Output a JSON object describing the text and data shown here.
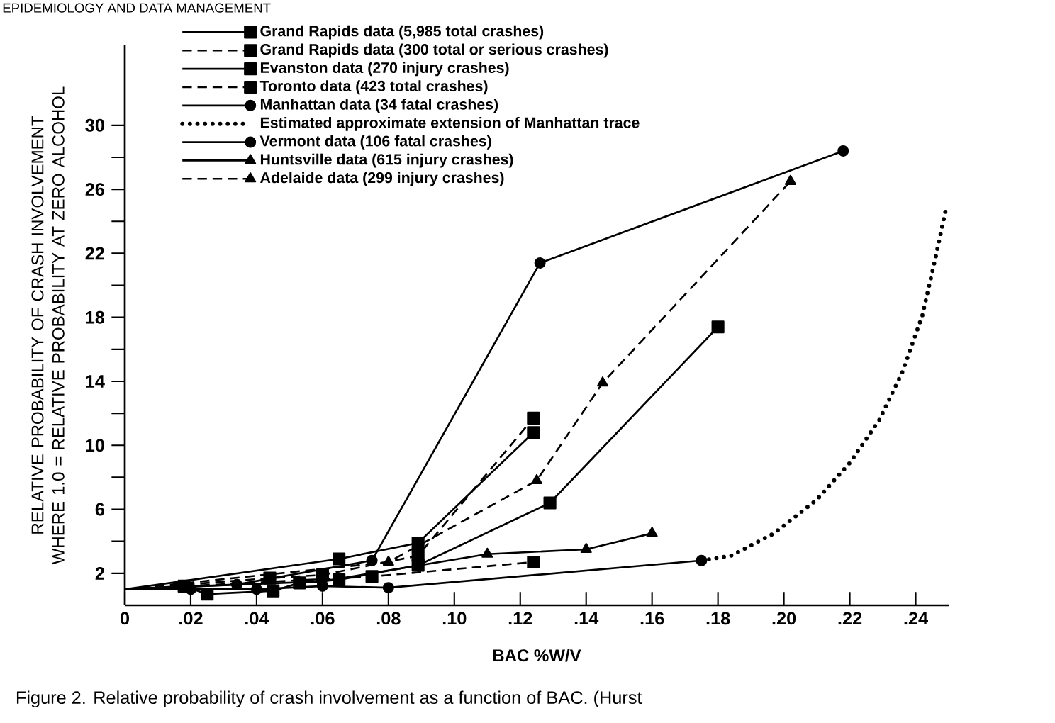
{
  "chart_data": {
    "type": "line",
    "xlabel": "BAC %W/V",
    "ylabel": "RELATIVE PROBABILITY OF CRASH INVOLVEMENT WHERE 1.0 = RELATIVE PROBABILITY AT ZERO ALCOHOL",
    "annotations": [
      "EPIDEMIOLOGY AND DATA MANAGEMENT",
      "Figure 2.    Relative probability of crash involvement as a function of BAC. (Hurst"
    ],
    "xlim": [
      0,
      0.25
    ],
    "ylim": [
      0,
      35
    ],
    "xticks": [
      0,
      {
        "value": 0.02,
        "label": ".02"
      },
      {
        "value": 0.04,
        "label": ".04"
      },
      {
        "value": 0.06,
        "label": ".06"
      },
      {
        "value": 0.08,
        "label": ".08"
      },
      {
        "value": 0.1,
        "label": ".10"
      },
      {
        "value": 0.12,
        "label": ".12"
      },
      {
        "value": 0.14,
        "label": ".14"
      },
      {
        "value": 0.16,
        "label": ".16"
      },
      {
        "value": 0.18,
        "label": ".18"
      },
      {
        "value": 0.2,
        "label": ".20"
      },
      {
        "value": 0.22,
        "label": ".22"
      },
      {
        "value": 0.24,
        "label": ".24"
      }
    ],
    "yticks": [
      2,
      {
        "value": 4,
        "label": null
      },
      6,
      {
        "value": 8,
        "label": null
      },
      10,
      {
        "value": 12,
        "label": null
      },
      14,
      {
        "value": 16,
        "label": null
      },
      18,
      {
        "value": 20,
        "label": null
      },
      22,
      {
        "value": 24,
        "label": null
      },
      26,
      {
        "value": 28,
        "label": null
      },
      30
    ],
    "legend": "top left",
    "grid": false,
    "series": [
      {
        "name": "Grand Rapids data (5,985 total crashes)",
        "color": "#000000",
        "marker": "square",
        "line_style": "solid",
        "x": [
          0,
          0.018,
          0.025,
          0.045,
          0.053,
          0.065,
          0.089,
          0.129,
          0.18
        ],
        "values": [
          1,
          1.2,
          0.7,
          0.9,
          1.4,
          1.6,
          2.5,
          6.4,
          17.4
        ]
      },
      {
        "name": "Grand Rapids data (300 total or serious crashes)",
        "color": "#000000",
        "marker": "square",
        "line_style": "dashed",
        "x": [
          0,
          0.044,
          0.06,
          0.089,
          0.124
        ],
        "values": [
          1,
          1.7,
          1.9,
          3.1,
          11.7
        ]
      },
      {
        "name": "Evanston data (270 injury crashes)",
        "color": "#000000",
        "marker": "square",
        "line_style": "solid",
        "x": [
          0,
          0.065,
          0.089,
          0.124
        ],
        "values": [
          1,
          2.9,
          3.9,
          10.8
        ]
      },
      {
        "name": "Toronto data (423 total crashes)",
        "color": "#000000",
        "marker": "square",
        "line_style": "dashed",
        "x": [
          0,
          0.075,
          0.124
        ],
        "values": [
          1,
          1.8,
          2.7
        ]
      },
      {
        "name": "Manhattan data (34 fatal crashes)",
        "color": "#000000",
        "marker": "circle",
        "line_style": "solid",
        "x": [
          0,
          0.02,
          0.04,
          0.06,
          0.08,
          0.175
        ],
        "values": [
          1,
          1,
          1,
          1.2,
          1.1,
          2.8
        ]
      },
      {
        "name": "Estimated approximate extension of Manhattan trace",
        "color": "#000000",
        "marker": "none",
        "line_style": "dotted",
        "x": [
          0.175,
          0.184,
          0.197,
          0.21,
          0.22,
          0.229,
          0.236,
          0.242,
          0.246,
          0.249
        ],
        "values": [
          2.8,
          3.1,
          4.5,
          6.6,
          8.9,
          11.6,
          14.6,
          18.1,
          21.7,
          24.6
        ]
      },
      {
        "name": "Vermont data (106 fatal crashes)",
        "color": "#000000",
        "marker": "circle",
        "line_style": "solid",
        "x": [
          0,
          0.034,
          0.075,
          0.126,
          0.218
        ],
        "values": [
          1,
          1.3,
          2.8,
          21.4,
          28.4
        ]
      },
      {
        "name": "Huntsville data (615 injury crashes)",
        "color": "#000000",
        "marker": "triangle",
        "line_style": "solid",
        "x": [
          0,
          0.06,
          0.11,
          0.14,
          0.16
        ],
        "values": [
          1,
          1.5,
          3.2,
          3.5,
          4.5
        ]
      },
      {
        "name": "Adelaide data (299 injury crashes)",
        "color": "#000000",
        "marker": "triangle",
        "line_style": "dashed",
        "x": [
          0,
          0.08,
          0.125,
          0.145,
          0.202
        ],
        "values": [
          1,
          2.7,
          7.8,
          13.9,
          26.5
        ]
      }
    ]
  }
}
